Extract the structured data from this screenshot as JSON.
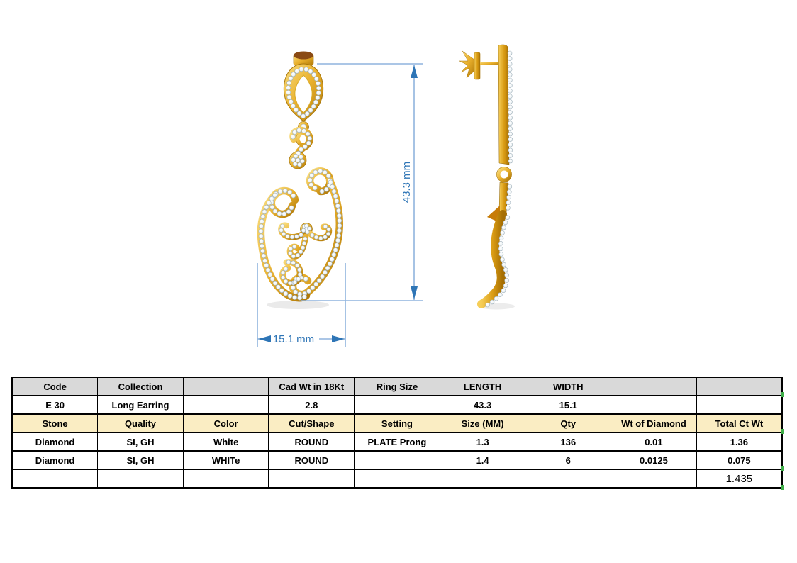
{
  "drawing": {
    "length_label": "43.3 mm",
    "width_label": "15.1 mm",
    "colors": {
      "gold": "#e9b02c",
      "gold_dark": "#a9770a",
      "diamond": "#f4f7f8",
      "dim_line": "#8fb4de",
      "dim_accent": "#2e75b6"
    }
  },
  "table": {
    "header_bg": "#d9d9d9",
    "subheader_bg": "#faedc3",
    "rows": [
      [
        "Code",
        "Collection",
        "",
        "Cad Wt in 18Kt",
        "Ring Size",
        "LENGTH",
        "WIDTH",
        "",
        ""
      ],
      [
        "E 30",
        "Long Earring",
        "",
        "2.8",
        "",
        "43.3",
        "15.1",
        "",
        ""
      ],
      [
        "Stone",
        "Quality",
        "Color",
        "Cut/Shape",
        "Setting",
        "Size (MM)",
        "Qty",
        "Wt of Diamond",
        "Total Ct Wt"
      ],
      [
        "Diamond",
        "SI, GH",
        "White",
        "ROUND",
        "PLATE Prong",
        "1.3",
        "136",
        "0.01",
        "1.36"
      ],
      [
        "Diamond",
        "SI, GH",
        "WHITe",
        "ROUND",
        "",
        "1.4",
        "6",
        "0.0125",
        "0.075"
      ],
      [
        "",
        "",
        "",
        "",
        "",
        "",
        "",
        "",
        "1.435"
      ]
    ]
  }
}
